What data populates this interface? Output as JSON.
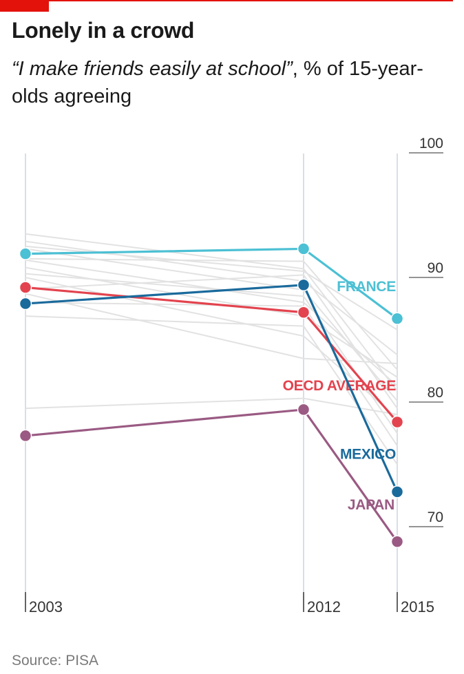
{
  "header": {
    "title": "Lonely in a crowd",
    "subtitle_quote": "“I make friends easily at school”",
    "subtitle_rest": ", % of 15-year-olds agreeing"
  },
  "footer": {
    "source": "Source: PISA"
  },
  "colors": {
    "brand_red": "#e3120b",
    "grid": "#bdc9d9",
    "background_lines": "#e2e2e2",
    "france": "#4cc0d4",
    "oecd": "#e3434e",
    "mexico": "#1a6a9c",
    "japan": "#9a5a83"
  },
  "chart_data": {
    "type": "line",
    "x": [
      "2003",
      "2012",
      "2015"
    ],
    "ylim": [
      65,
      100
    ],
    "yticks": [
      100,
      90,
      80,
      70
    ],
    "grid": true,
    "series": [
      {
        "name": "FRANCE",
        "values": [
          91.4,
          91.8,
          86.2
        ],
        "color": "#4cc0d4"
      },
      {
        "name": "OECD AVERAGE",
        "values": [
          88.7,
          86.7,
          77.9
        ],
        "color": "#e3434e"
      },
      {
        "name": "MEXICO",
        "values": [
          87.4,
          88.9,
          72.3
        ],
        "color": "#1a6a9c"
      },
      {
        "name": "JAPAN",
        "values": [
          76.8,
          78.9,
          68.3
        ],
        "color": "#9a5a83"
      }
    ],
    "background_series": [
      [
        93.0,
        90.2,
        80.4
      ],
      [
        92.4,
        89.2,
        83.3
      ],
      [
        91.8,
        88.5,
        79.6
      ],
      [
        91.0,
        90.8,
        82.1
      ],
      [
        90.3,
        86.4,
        81.5
      ],
      [
        89.8,
        88.0,
        77.0
      ],
      [
        89.5,
        84.8,
        78.2
      ],
      [
        88.6,
        89.7,
        79.0
      ],
      [
        87.5,
        87.2,
        76.0
      ],
      [
        86.4,
        85.6,
        74.5
      ],
      [
        79.0,
        79.8,
        78.5
      ],
      [
        92.0,
        90.0,
        85.3
      ],
      [
        90.9,
        87.5,
        80.8
      ],
      [
        88.2,
        83.0,
        82.6
      ]
    ]
  }
}
